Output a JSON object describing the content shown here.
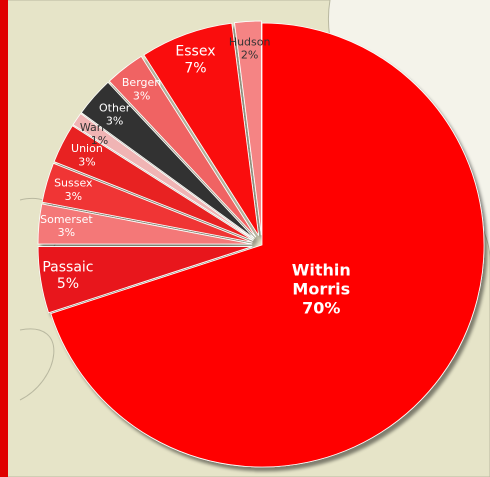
{
  "chart_data": {
    "type": "pie",
    "categories": [
      "Within Morris",
      "Passaic",
      "Somerset",
      "Sussex",
      "Union",
      "Warren",
      "Other",
      "Bergen",
      "Essex",
      "Hudson"
    ],
    "values": [
      70,
      5,
      3,
      3,
      3,
      1,
      3,
      3,
      7,
      2
    ],
    "value_labels": [
      "70%",
      "5%",
      "3%",
      "3%",
      "3%",
      "1%",
      "3%",
      "3%",
      "7%",
      "2%"
    ],
    "colors": [
      "#ff0000",
      "#e8141c",
      "#f47878",
      "#f03434",
      "#e82424",
      "#f0b4b4",
      "#333333",
      "#f06464",
      "#fa1010",
      "#f58484"
    ]
  }
}
